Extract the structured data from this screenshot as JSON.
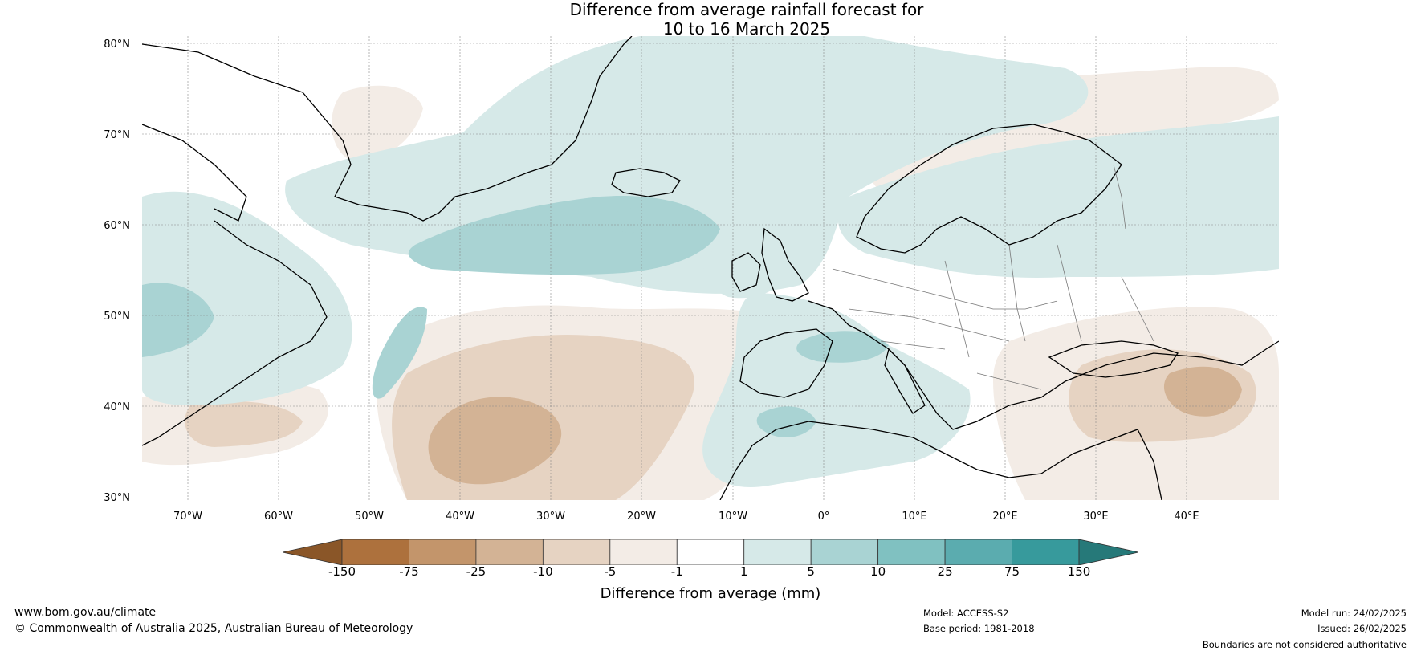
{
  "title": {
    "line1": "Difference from average rainfall forecast for",
    "line2": "10 to 16 March 2025"
  },
  "map": {
    "lat_labels": [
      "80°N",
      "70°N",
      "60°N",
      "50°N",
      "40°N",
      "30°N"
    ],
    "lon_labels": [
      "70°W",
      "60°W",
      "50°W",
      "40°W",
      "30°W",
      "20°W",
      "10°W",
      "0°",
      "10°E",
      "20°E",
      "30°E",
      "40°E"
    ],
    "lat_range": [
      30,
      81
    ],
    "lon_range": [
      -75,
      50
    ]
  },
  "legend": {
    "title": "Difference from average (mm)",
    "ticks": [
      "-150",
      "-75",
      "-25",
      "-10",
      "-5",
      "-1",
      "1",
      "5",
      "10",
      "25",
      "75",
      "150"
    ],
    "colors": [
      "#8a5628",
      "#ad713d",
      "#c3956b",
      "#d3b395",
      "#e6d3c2",
      "#f3ece6",
      "#ffffff",
      "#d6e9e8",
      "#a9d3d3",
      "#80c1c1",
      "#5bacaf",
      "#379a9c",
      "#267979"
    ]
  },
  "footer": {
    "website": "www.bom.gov.au/climate",
    "copyright": "© Commonwealth of Australia 2025, Australian Bureau of Meteorology",
    "model": "Model: ACCESS-S2",
    "base_period": "Base period: 1981-2018",
    "model_run": "Model run: 24/02/2025",
    "issued": "Issued: 26/02/2025",
    "disclaimer": "Boundaries are not considered authoritative"
  }
}
